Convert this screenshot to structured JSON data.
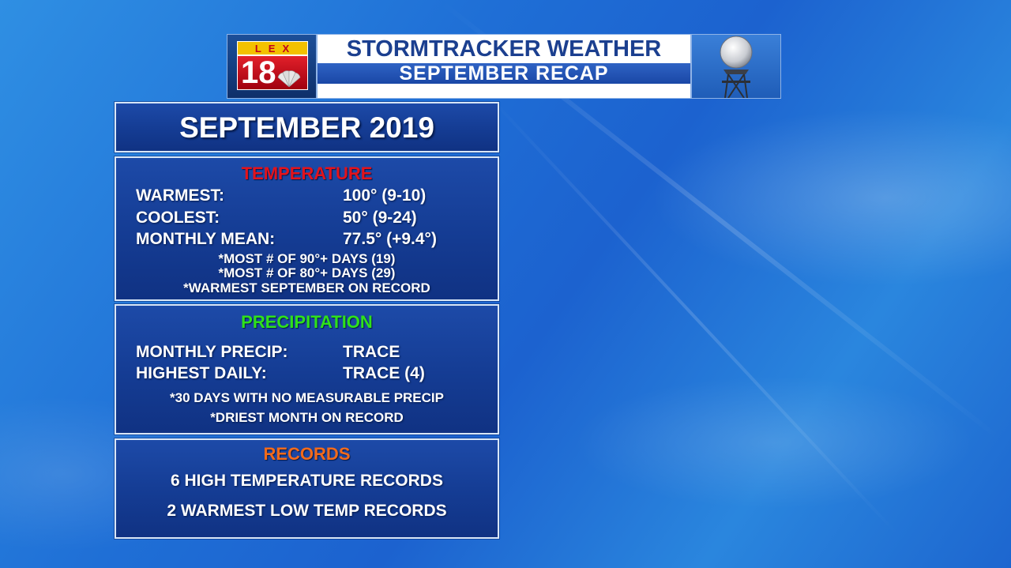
{
  "header": {
    "logo": {
      "text_top": "LEX",
      "text_main": "18"
    },
    "title_line1": "STORMTRACKER WEATHER",
    "title_line2": "SEPTEMBER RECAP",
    "radar_logo": "MAXTRACK DOPPLER"
  },
  "month_panel": {
    "title": "SEPTEMBER 2019"
  },
  "temperature": {
    "heading": "TEMPERATURE",
    "heading_color": "#e3131b",
    "rows": [
      {
        "label": "WARMEST:",
        "value": "100° (9-10)"
      },
      {
        "label": "COOLEST:",
        "value": "50° (9-24)"
      },
      {
        "label": "MONTHLY MEAN:",
        "value": "77.5° (+9.4°)"
      }
    ],
    "notes": [
      "*MOST # OF 90°+ DAYS  (19)",
      "*MOST # OF 80°+ DAYS  (29)",
      "*WARMEST SEPTEMBER ON RECORD"
    ]
  },
  "precipitation": {
    "heading": "PRECIPITATION",
    "heading_color": "#2fe11a",
    "rows": [
      {
        "label": "MONTHLY PRECIP:",
        "value": "TRACE"
      },
      {
        "label": "HIGHEST DAILY:",
        "value": "TRACE (4)"
      }
    ],
    "notes": [
      "*30 DAYS WITH NO MEASURABLE PRECIP",
      "*DRIEST MONTH ON RECORD"
    ]
  },
  "records": {
    "heading": "RECORDS",
    "heading_color": "#f26a1b",
    "lines": [
      "6 HIGH TEMPERATURE RECORDS",
      "2 WARMEST LOW TEMP RECORDS"
    ]
  }
}
